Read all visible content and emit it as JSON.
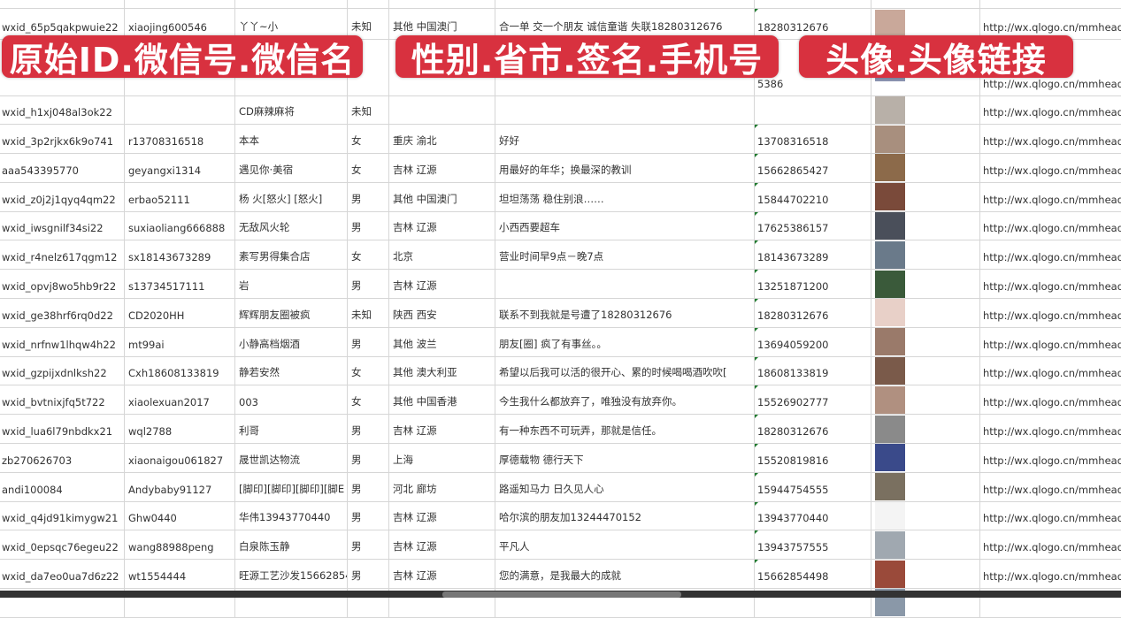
{
  "overlays": [
    "原始ID.微信号.微信名",
    "性别.省市.签名.手机号",
    "头像.头像链接"
  ],
  "colors": {
    "badge": "#d8313f",
    "phone_marker": "#1f7a2e"
  },
  "rows": [
    {
      "id": "",
      "wechat": "",
      "name": "",
      "gender": "",
      "region": "",
      "signature": "",
      "phone": "",
      "avatar": "",
      "link": ""
    },
    {
      "id": "wxid_65p5qakpwuie22",
      "wechat": "xiaojing600546",
      "name": "丫丫~小",
      "gender": "未知",
      "region": "其他 中国澳门",
      "signature": "合一单 交一个朋友 诚信童谐 失联18280312676",
      "phone": "18280312676",
      "avatar": "#c9a89a",
      "link": "http://wx.qlogo.cn/mmhead"
    },
    {
      "id": "",
      "wechat": "",
      "name": "",
      "gender": "",
      "region": "",
      "signature": "",
      "phone": "5386",
      "avatar": "#8a93b0",
      "link": "http://wx.qlogo.cn/mmhead"
    },
    {
      "id": "wxid_h1xj048al3ok22",
      "wechat": "",
      "name": "CD麻辣麻将",
      "gender": "未知",
      "region": "",
      "signature": "",
      "phone": "",
      "avatar": "#b8b0a8",
      "link": "http://wx.qlogo.cn/mmhead"
    },
    {
      "id": "wxid_3p2rjkx6k9o741",
      "wechat": "r13708316518",
      "name": "本本",
      "gender": "女",
      "region": "重庆 渝北",
      "signature": "好好",
      "phone": "13708316518",
      "avatar": "#a88f7e",
      "link": "http://wx.qlogo.cn/mmhead"
    },
    {
      "id": "aaa543395770",
      "wechat": "geyangxi1314",
      "name": "遇见你·美宿",
      "gender": "女",
      "region": "吉林 辽源",
      "signature": "用最好的年华；换最深的教训",
      "phone": "15662865427",
      "avatar": "#8c6a4a",
      "link": "http://wx.qlogo.cn/mmhead"
    },
    {
      "id": "wxid_z0j2j1qyq4qm22",
      "wechat": "erbao52111",
      "name": "杨 火[怒火] [怒火]",
      "gender": "男",
      "region": "其他 中国澳门",
      "signature": "坦坦荡荡 稳住别浪……",
      "phone": "15844702210",
      "avatar": "#7a4a3a",
      "link": "http://wx.qlogo.cn/mmhead"
    },
    {
      "id": "wxid_iwsgnilf34si22",
      "wechat": "suxiaoliang666888",
      "name": "无敌风火轮",
      "gender": "男",
      "region": "吉林 辽源",
      "signature": "小西西要超车",
      "phone": "17625386157",
      "avatar": "#4a4f5a",
      "link": "http://wx.qlogo.cn/mmhead"
    },
    {
      "id": "wxid_r4nelz617qgm12",
      "wechat": "sx18143673289",
      "name": "素写男得集合店",
      "gender": "女",
      "region": "北京",
      "signature": "营业时间早9点－晚7点",
      "phone": "18143673289",
      "avatar": "#6a7a8a",
      "link": "http://wx.qlogo.cn/mmhead"
    },
    {
      "id": "wxid_opvj8wo5hb9r22",
      "wechat": "s13734517111",
      "name": "岩",
      "gender": "男",
      "region": "吉林 辽源",
      "signature": "",
      "phone": "13251871200",
      "avatar": "#3a5a3a",
      "link": "http://wx.qlogo.cn/mmhead"
    },
    {
      "id": "wxid_ge38hrf6rq0d22",
      "wechat": "CD2020HH",
      "name": "辉辉朋友圈被疯",
      "gender": "未知",
      "region": "陕西 西安",
      "signature": "联系不到我就是号遭了18280312676",
      "phone": "18280312676",
      "avatar": "#e8d0c8",
      "link": "http://wx.qlogo.cn/mmhead"
    },
    {
      "id": "wxid_nrfnw1lhqw4h22",
      "wechat": "mt99ai",
      "name": "小静高档烟酒",
      "gender": "男",
      "region": "其他 波兰",
      "signature": "朋友[圈] 疯了有事丝。。",
      "phone": "13694059200",
      "avatar": "#9a7a6a",
      "link": "http://wx.qlogo.cn/mmhead"
    },
    {
      "id": "wxid_gzpijxdnlksh22",
      "wechat": "Cxh18608133819",
      "name": "静若安然",
      "gender": "女",
      "region": "其他 澳大利亚",
      "signature": "希望以后我可以活的很开心、累的时候喝喝酒吹吹[",
      "phone": "18608133819",
      "avatar": "#7a5a4a",
      "link": "http://wx.qlogo.cn/mmhead"
    },
    {
      "id": "wxid_bvtnixjfq5t722",
      "wechat": "xiaolexuan2017",
      "name": "003",
      "gender": "女",
      "region": "其他 中国香港",
      "signature": "今生我什么都放弃了，唯独没有放弃你。",
      "phone": "15526902777",
      "avatar": "#b09080",
      "link": "http://wx.qlogo.cn/mmhead"
    },
    {
      "id": "wxid_lua6l79nbdkx21",
      "wechat": "wql2788",
      "name": "利哥",
      "gender": "男",
      "region": "吉林 辽源",
      "signature": "有一种东西不可玩弄，那就是信任。",
      "phone": "18280312676",
      "avatar": "#8a8a8a",
      "link": "http://wx.qlogo.cn/mmhead"
    },
    {
      "id": "zb270626703",
      "wechat": "xiaonaigou061827",
      "name": "晟世凯达物流",
      "gender": "男",
      "region": "上海",
      "signature": "厚德载物 德行天下",
      "phone": "15520819816",
      "avatar": "#3a4a8a",
      "link": "http://wx.qlogo.cn/mmhead"
    },
    {
      "id": "andi100084",
      "wechat": "Andybaby91127",
      "name": "[脚印][脚印][脚印][脚E",
      "gender": "男",
      "region": "河北 廊坊",
      "signature": "路遥知马力 日久见人心",
      "phone": "15944754555",
      "avatar": "#7a7060",
      "link": "http://wx.qlogo.cn/mmhead"
    },
    {
      "id": "wxid_q4jd91kimygw21",
      "wechat": "Ghw0440",
      "name": "华伟13943770440",
      "gender": "男",
      "region": "吉林 辽源",
      "signature": "哈尔滨的朋友加13244470152",
      "phone": "13943770440",
      "avatar": "#f4f4f4",
      "link": "http://wx.qlogo.cn/mmhead"
    },
    {
      "id": "wxid_0epsqc76egeu22",
      "wechat": "wang88988peng",
      "name": "白泉陈玉静",
      "gender": "男",
      "region": "吉林 辽源",
      "signature": "平凡人",
      "phone": "13943757555",
      "avatar": "#a0a8b0",
      "link": "http://wx.qlogo.cn/mmhead"
    },
    {
      "id": "wxid_da7eo0ua7d6z22",
      "wechat": "wt1554444",
      "name": "旺源工艺沙发15662854",
      "gender": "男",
      "region": "吉林 辽源",
      "signature": "您的满意，是我最大的成就",
      "phone": "15662854498",
      "avatar": "#9a4a3a",
      "link": "http://wx.qlogo.cn/mmhead"
    },
    {
      "id": "",
      "wechat": "",
      "name": "",
      "gender": "",
      "region": "",
      "signature": "",
      "phone": "",
      "avatar": "#8a98a8",
      "link": ""
    }
  ]
}
